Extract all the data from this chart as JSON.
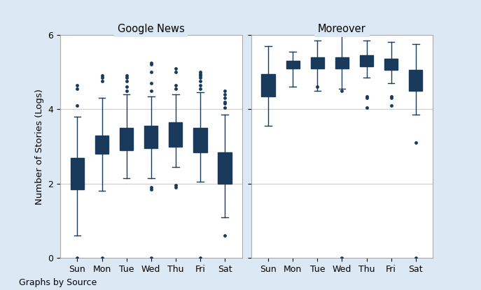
{
  "title_left": "Google News",
  "title_right": "Moreover",
  "ylabel": "Number of Stories (Logs)",
  "xlabel_note": "Graphs by Source",
  "days": [
    "Sun",
    "Mon",
    "Tue",
    "Wed",
    "Thu",
    "Fri",
    "Sat"
  ],
  "ylim": [
    0,
    6
  ],
  "yticks": [
    0,
    2,
    4,
    6
  ],
  "background_color": "#dce9f5",
  "plot_bg_color": "#ffffff",
  "box_facecolor": "#b0bfd0",
  "box_edgecolor": "#1a3a5c",
  "median_color": "#1a3a5c",
  "flier_color": "#1a3a5c",
  "google_news": {
    "Sun": {
      "q1": 1.85,
      "median": 2.3,
      "q3": 2.7,
      "whislo": 0.6,
      "whishi": 3.8,
      "fliers": [
        0.0,
        4.1,
        4.55,
        4.65
      ]
    },
    "Mon": {
      "q1": 2.8,
      "median": 3.05,
      "q3": 3.3,
      "whislo": 1.8,
      "whishi": 4.3,
      "fliers": [
        0.0,
        4.75,
        4.85,
        4.9
      ]
    },
    "Tue": {
      "q1": 2.9,
      "median": 3.2,
      "q3": 3.5,
      "whislo": 2.15,
      "whishi": 4.4,
      "fliers": [
        4.75,
        4.85,
        4.9,
        4.6,
        4.5
      ]
    },
    "Wed": {
      "q1": 2.95,
      "median": 3.25,
      "q3": 3.55,
      "whislo": 2.15,
      "whishi": 4.35,
      "fliers": [
        0.0,
        1.85,
        1.9,
        4.5,
        4.7,
        5.0,
        5.2,
        5.25
      ]
    },
    "Thu": {
      "q1": 3.0,
      "median": 3.3,
      "q3": 3.65,
      "whislo": 2.45,
      "whishi": 4.4,
      "fliers": [
        1.9,
        1.95,
        4.55,
        4.65,
        5.0,
        5.1
      ]
    },
    "Fri": {
      "q1": 2.85,
      "median": 3.25,
      "q3": 3.5,
      "whislo": 2.05,
      "whishi": 4.45,
      "fliers": [
        0.0,
        4.55,
        4.65,
        4.75,
        4.85,
        4.9,
        4.95,
        5.0
      ]
    },
    "Sat": {
      "q1": 2.0,
      "median": 2.5,
      "q3": 2.85,
      "whislo": 1.1,
      "whishi": 3.85,
      "fliers": [
        0.6,
        4.05,
        4.15,
        4.2,
        4.3,
        4.4,
        4.5
      ]
    }
  },
  "moreover": {
    "Sun": {
      "q1": 4.35,
      "median": 4.65,
      "q3": 4.95,
      "whislo": 3.55,
      "whishi": 5.7,
      "fliers": []
    },
    "Mon": {
      "q1": 5.1,
      "median": 5.2,
      "q3": 5.3,
      "whislo": 4.6,
      "whishi": 5.55,
      "fliers": []
    },
    "Tue": {
      "q1": 5.1,
      "median": 5.25,
      "q3": 5.4,
      "whislo": 4.5,
      "whishi": 5.85,
      "fliers": [
        4.6
      ]
    },
    "Wed": {
      "q1": 5.1,
      "median": 5.25,
      "q3": 5.4,
      "whislo": 4.55,
      "whishi": 6.0,
      "fliers": [
        0.0,
        4.5
      ]
    },
    "Thu": {
      "q1": 5.15,
      "median": 5.3,
      "q3": 5.45,
      "whislo": 4.85,
      "whishi": 5.85,
      "fliers": [
        4.05,
        4.3,
        4.35
      ]
    },
    "Fri": {
      "q1": 5.05,
      "median": 5.2,
      "q3": 5.35,
      "whislo": 4.7,
      "whishi": 5.8,
      "fliers": [
        4.1,
        4.3,
        4.35
      ]
    },
    "Sat": {
      "q1": 4.5,
      "median": 4.75,
      "q3": 5.05,
      "whislo": 3.85,
      "whishi": 5.75,
      "fliers": [
        0.0,
        3.1
      ]
    }
  }
}
